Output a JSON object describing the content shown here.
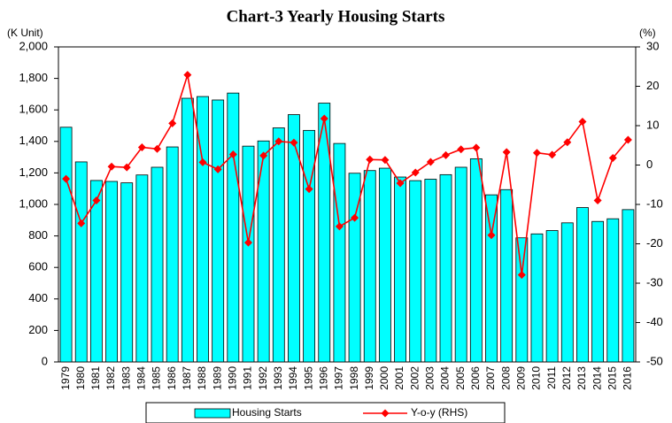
{
  "chart_data": {
    "type": "bar",
    "title": "Chart-3 Yearly Housing Starts",
    "y_label": "(K Unit)",
    "y2_label": "(%)",
    "categories": [
      "1979",
      "1980",
      "1981",
      "1982",
      "1983",
      "1984",
      "1985",
      "1986",
      "1987",
      "1988",
      "1989",
      "1990",
      "1991",
      "1992",
      "1993",
      "1994",
      "1995",
      "1996",
      "1997",
      "1998",
      "1999",
      "2000",
      "2001",
      "2002",
      "2003",
      "2004",
      "2005",
      "2006",
      "2007",
      "2008",
      "2009",
      "2010",
      "2011",
      "2012",
      "2013",
      "2014",
      "2015",
      "2016"
    ],
    "series": [
      {
        "name": "Housing Starts",
        "type": "bar",
        "color": "#00ffff",
        "values": [
          1490,
          1270,
          1152,
          1146,
          1137,
          1187,
          1236,
          1365,
          1674,
          1685,
          1663,
          1707,
          1370,
          1403,
          1486,
          1570,
          1470,
          1643,
          1387,
          1198,
          1215,
          1230,
          1174,
          1151,
          1160,
          1189,
          1236,
          1290,
          1061,
          1094,
          788,
          813,
          834,
          883,
          980,
          892,
          909,
          967
        ]
      },
      {
        "name": "Y-o-y (RHS)",
        "type": "line",
        "axis": "y2",
        "color": "#ff0000",
        "values": [
          -3.5,
          -14.8,
          -9.0,
          -0.4,
          -0.6,
          4.5,
          4.1,
          10.6,
          22.9,
          0.7,
          -1.1,
          2.7,
          -19.7,
          2.4,
          6.0,
          5.7,
          -6.1,
          11.8,
          -15.6,
          -13.4,
          1.4,
          1.3,
          -4.6,
          -1.9,
          0.8,
          2.5,
          4.0,
          4.4,
          -17.8,
          3.3,
          -27.9,
          3.1,
          2.6,
          5.8,
          11.0,
          -9.0,
          1.8,
          6.4
        ]
      }
    ],
    "ylim": [
      0,
      2000
    ],
    "yticks": [
      0,
      200,
      400,
      600,
      800,
      {
        "value": 1000,
        "label": "1,000"
      },
      {
        "value": 1200,
        "label": "1,200"
      },
      {
        "value": 1400,
        "label": "1,400"
      },
      {
        "value": 1600,
        "label": "1,600"
      },
      {
        "value": 1800,
        "label": "1,800"
      },
      {
        "value": 2000,
        "label": "2,000"
      }
    ],
    "y2lim": [
      -50,
      30
    ],
    "y2ticks": [
      -50,
      -40,
      -30,
      -20,
      -10,
      0,
      10,
      20,
      30
    ],
    "grid": false
  }
}
